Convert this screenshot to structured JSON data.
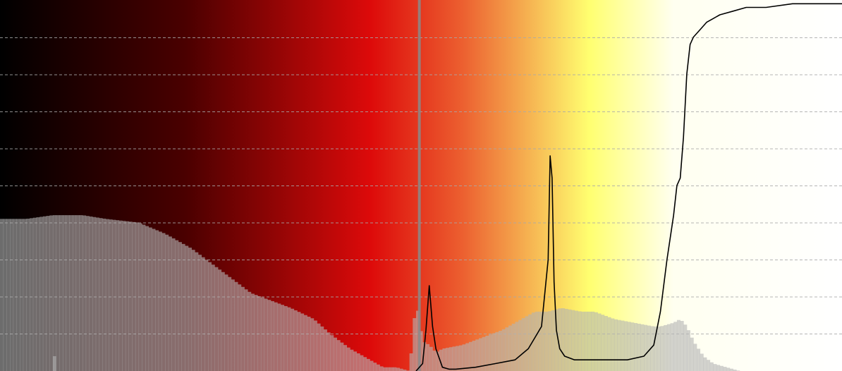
{
  "chart_data": {
    "type": "area",
    "title": "",
    "xlabel": "",
    "ylabel": "",
    "xlim": [
      0,
      255
    ],
    "ylim": [
      0,
      1
    ],
    "grid": true,
    "legend": "none",
    "background_gradient": [
      {
        "stop": 0.0,
        "color": "#000000"
      },
      {
        "stop": 0.22,
        "color": "#4a0000"
      },
      {
        "stop": 0.44,
        "color": "#dd0a0a"
      },
      {
        "stop": 0.55,
        "color": "#ec6030"
      },
      {
        "stop": 0.7,
        "color": "#ffff70"
      },
      {
        "stop": 0.8,
        "color": "#fffff0"
      },
      {
        "stop": 1.0,
        "color": "#ffffff"
      }
    ],
    "marker": {
      "x": 127,
      "color": "#8a8a8a"
    },
    "series": [
      {
        "kind": "histogram",
        "color": "#b4b4b4",
        "x": [
          0,
          8,
          16,
          25,
          32,
          42,
          50,
          58,
          64,
          70,
          76,
          82,
          88,
          95,
          100,
          106,
          110,
          116,
          120,
          124,
          126,
          128,
          130,
          132,
          134,
          140,
          146,
          152,
          158,
          162,
          166,
          170,
          176,
          180,
          186,
          192,
          198,
          200,
          204,
          206,
          208,
          210,
          213,
          216,
          220,
          224,
          240,
          255
        ],
        "values": [
          0.41,
          0.41,
          0.42,
          0.42,
          0.41,
          0.4,
          0.37,
          0.33,
          0.29,
          0.25,
          0.21,
          0.19,
          0.17,
          0.14,
          0.1,
          0.06,
          0.04,
          0.01,
          0.01,
          0.0,
          0.19,
          0.08,
          0.07,
          0.05,
          0.06,
          0.07,
          0.09,
          0.11,
          0.14,
          0.16,
          0.16,
          0.17,
          0.16,
          0.16,
          0.14,
          0.13,
          0.12,
          0.12,
          0.13,
          0.14,
          0.12,
          0.08,
          0.04,
          0.02,
          0.01,
          0.0,
          0.0,
          0.0
        ]
      },
      {
        "kind": "curve",
        "color": "#000000",
        "x": [
          126,
          128,
          129,
          130,
          131,
          132,
          134,
          136,
          138,
          144,
          150,
          156,
          160,
          164,
          166,
          166.6,
          167.2,
          167.8,
          168.5,
          169.5,
          171,
          174,
          178,
          185,
          190,
          195,
          198,
          200,
          202,
          204,
          205,
          206,
          207,
          208,
          209,
          210,
          212,
          214,
          216,
          218,
          222,
          226,
          232,
          240,
          250,
          255
        ],
        "values": [
          0.0,
          0.02,
          0.11,
          0.23,
          0.12,
          0.06,
          0.01,
          0.005,
          0.005,
          0.01,
          0.02,
          0.03,
          0.06,
          0.12,
          0.3,
          0.58,
          0.52,
          0.24,
          0.11,
          0.06,
          0.04,
          0.03,
          0.03,
          0.03,
          0.03,
          0.04,
          0.07,
          0.16,
          0.3,
          0.42,
          0.5,
          0.52,
          0.63,
          0.8,
          0.88,
          0.9,
          0.92,
          0.94,
          0.95,
          0.96,
          0.97,
          0.98,
          0.98,
          0.99,
          0.99,
          0.99
        ]
      }
    ]
  }
}
